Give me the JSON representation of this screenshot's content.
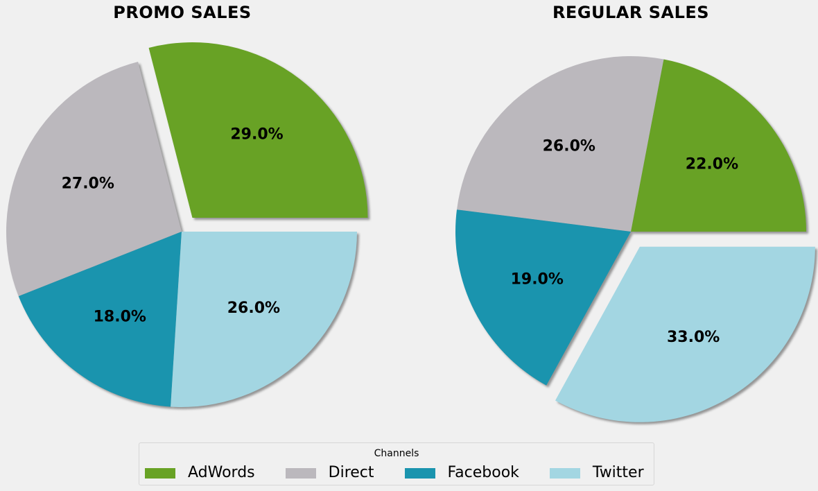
{
  "chart_data": [
    {
      "type": "pie",
      "title": "PROMO SALES",
      "labels": [
        "AdWords",
        "Direct",
        "Facebook",
        "Twitter"
      ],
      "values": [
        29.0,
        27.0,
        18.0,
        26.0
      ],
      "value_labels": [
        "29.0%",
        "27.0%",
        "18.0%",
        "26.0%"
      ],
      "exploded": [
        "AdWords"
      ],
      "shadow": true
    },
    {
      "type": "pie",
      "title": "REGULAR SALES",
      "labels": [
        "AdWords",
        "Direct",
        "Facebook",
        "Twitter"
      ],
      "values": [
        22.0,
        26.0,
        19.0,
        33.0
      ],
      "value_labels": [
        "22.0%",
        "26.0%",
        "19.0%",
        "33.0%"
      ],
      "exploded": [
        "Twitter"
      ],
      "shadow": true
    }
  ],
  "legend": {
    "title": "Channels",
    "placement": "bottom-center",
    "items": [
      {
        "label": "AdWords",
        "color": "#68a225"
      },
      {
        "label": "Direct",
        "color": "#bbb8bd"
      },
      {
        "label": "Facebook",
        "color": "#1a94ae"
      },
      {
        "label": "Twitter",
        "color": "#a3d6e2"
      }
    ]
  },
  "colors": {
    "background": "#f0f0f0",
    "AdWords": "#68a225",
    "Direct": "#bbb8bd",
    "Facebook": "#1a94ae",
    "Twitter": "#a3d6e2"
  }
}
